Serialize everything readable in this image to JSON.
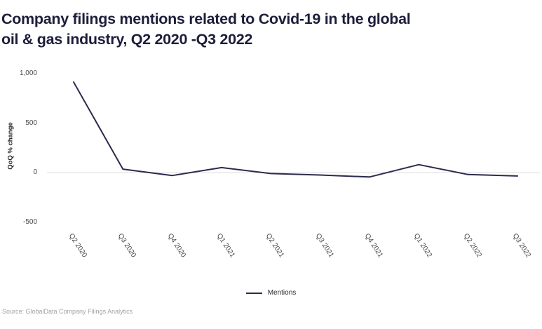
{
  "header": {
    "title_line1": "Company filings mentions related to Covid-19 in the global",
    "title_line2": "oil & gas industry, Q2 2020 -Q3 2022"
  },
  "chart_data": {
    "type": "line",
    "title": "Company filings mentions related to Covid-19 in the global oil & gas industry, Q2 2020 -Q3 2022",
    "categories": [
      "Q2 2020",
      "Q3 2020",
      "Q4 2020",
      "Q1 2021",
      "Q2 2021",
      "Q3 2021",
      "Q4 2021",
      "Q1 2022",
      "Q2 2022",
      "Q3 2022"
    ],
    "series": [
      {
        "name": "Mentions",
        "values": [
          915,
          35,
          -30,
          50,
          -10,
          -25,
          -45,
          80,
          -20,
          -35
        ]
      }
    ],
    "xlabel": "",
    "ylabel": "QoQ % change",
    "ylim": [
      -560,
      1070
    ],
    "y_ticks": [
      {
        "value": 1000,
        "label": "1,000"
      },
      {
        "value": 500,
        "label": "500"
      },
      {
        "value": 0,
        "label": "0"
      },
      {
        "value": -500,
        "label": "-500"
      }
    ],
    "grid": "zero-line-only",
    "legend_position": "bottom-center",
    "colors": {
      "line": "#2b2b4e",
      "gridline": "#dcdcdc",
      "title": "#1d1d3b"
    }
  },
  "footer": {
    "source": "Source: GlobalData Company Filings Analytics"
  }
}
